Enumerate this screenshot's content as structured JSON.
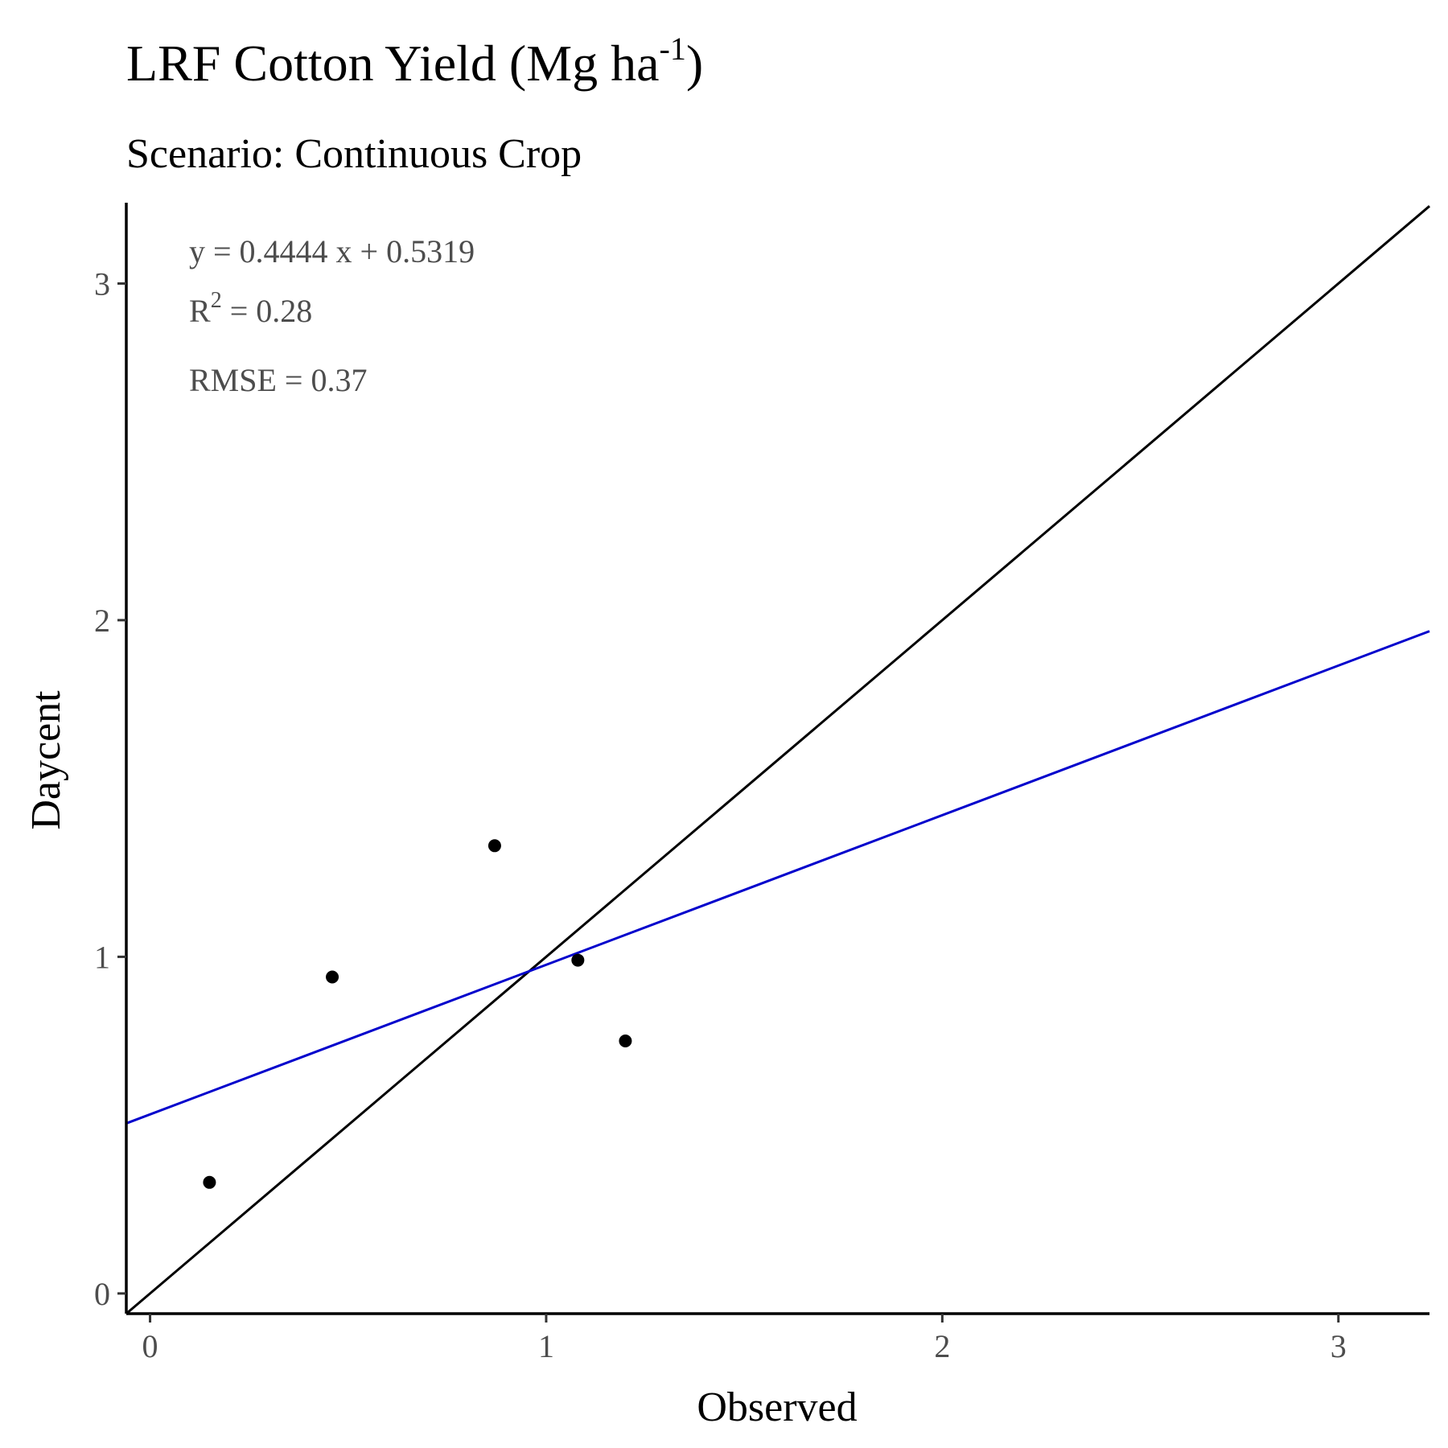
{
  "chart_data": {
    "type": "scatter",
    "title": "LRF Cotton Yield (Mg ha",
    "title_superscript": "-1",
    "title_suffix": ")",
    "subtitle": "Scenario: Continuous Crop",
    "xlabel": "Observed",
    "ylabel": "Daycent",
    "xlim": [
      -0.06,
      3.23
    ],
    "ylim": [
      -0.06,
      3.24
    ],
    "x_ticks": [
      0,
      1,
      2,
      3
    ],
    "y_ticks": [
      0,
      1,
      2,
      3
    ],
    "x_tick_labels": [
      "0",
      "1",
      "2",
      "3"
    ],
    "y_tick_labels": [
      "0",
      "1",
      "2",
      "3"
    ],
    "grid": false,
    "points": [
      {
        "x": 0.15,
        "y": 0.33
      },
      {
        "x": 0.46,
        "y": 0.94
      },
      {
        "x": 0.87,
        "y": 1.33
      },
      {
        "x": 1.08,
        "y": 0.99
      },
      {
        "x": 1.2,
        "y": 0.75
      }
    ],
    "point_color": "#000000",
    "one_to_one_line": {
      "slope": 1,
      "intercept": 0,
      "color": "#000000"
    },
    "regression_line": {
      "slope": 0.4444,
      "intercept": 0.5319,
      "color": "#0000cc"
    },
    "annotations": {
      "equation": "y = 0.4444 x +  0.5319",
      "r2_prefix": "R",
      "r2_superscript": "2",
      "r2_suffix": " = 0.28",
      "rmse": "RMSE = 0.37"
    }
  }
}
